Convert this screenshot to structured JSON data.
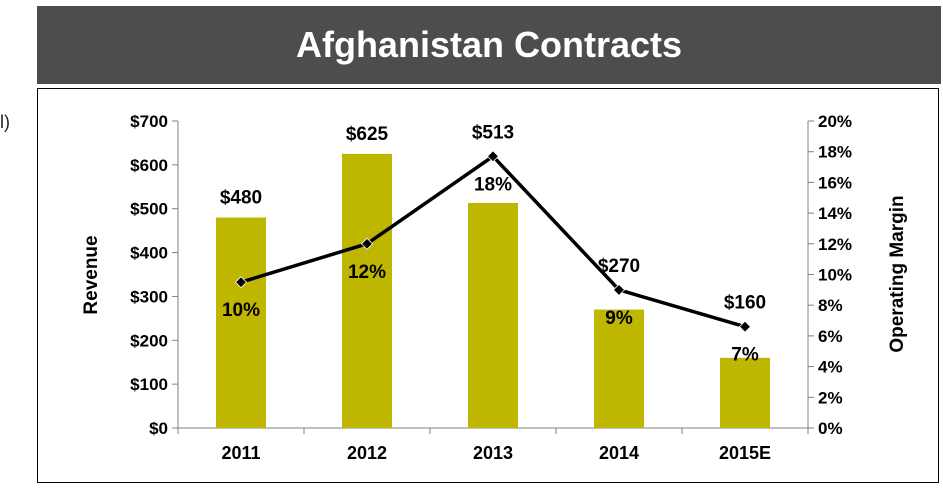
{
  "header": {
    "title": "Afghanistan Contracts"
  },
  "side_mark": "l)",
  "colors": {
    "bar": "#bfb600",
    "line": "#000000",
    "banner": "#4d4d4d"
  },
  "chart_data": {
    "type": "bar",
    "categories": [
      "2011",
      "2012",
      "2013",
      "2014",
      "2015E"
    ],
    "series": [
      {
        "type": "bar",
        "axis": "left",
        "values": [
          480,
          625,
          513,
          270,
          160
        ],
        "labels": [
          "$480",
          "$625",
          "$513",
          "$270",
          "$160"
        ]
      },
      {
        "type": "line",
        "axis": "right",
        "values": [
          9.5,
          12,
          17.7,
          9,
          6.6
        ],
        "labels": [
          "10%",
          "12%",
          "18%",
          "9%",
          "7%"
        ]
      }
    ],
    "ylabel": "Revenue",
    "y2label": "Operating Margin",
    "ylim": [
      0,
      700
    ],
    "y2lim": [
      0,
      20
    ],
    "yticks": [
      "$0",
      "$100",
      "$200",
      "$300",
      "$400",
      "$500",
      "$600",
      "$700"
    ],
    "y2ticks": [
      "0%",
      "2%",
      "4%",
      "6%",
      "8%",
      "10%",
      "12%",
      "14%",
      "16%",
      "18%",
      "20%"
    ],
    "grid": false,
    "legend": "none"
  }
}
